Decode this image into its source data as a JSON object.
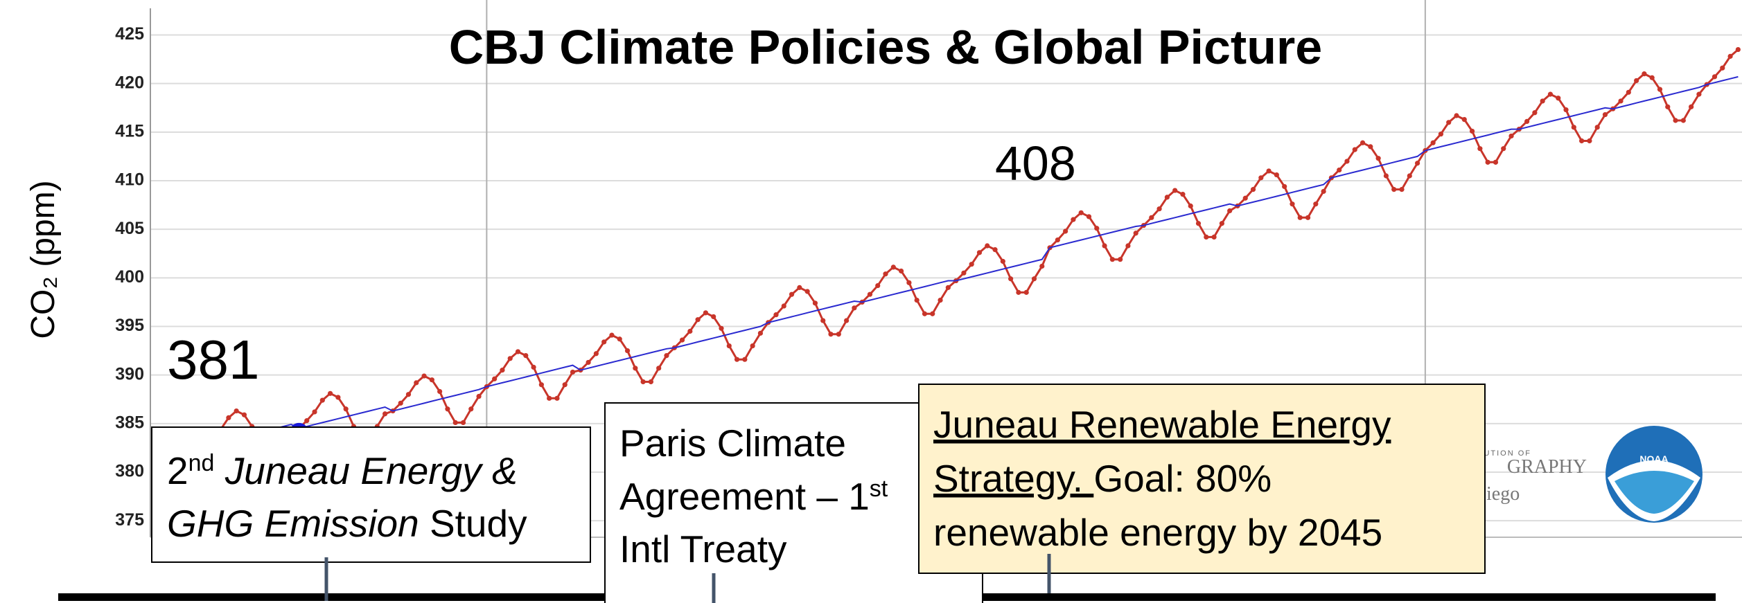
{
  "chart_data": {
    "type": "line",
    "title": "CBJ Climate Policies & Global Picture",
    "y_label": "CO₂ (ppm)",
    "ylim": [
      373.3,
      428.6
    ],
    "yticks": [
      375,
      380,
      385,
      390,
      395,
      400,
      405,
      410,
      415,
      420,
      425
    ],
    "xlim": [
      -1,
      202.5
    ],
    "xticks": [
      42,
      162
    ],
    "grid": true,
    "annotations": [
      {
        "text": "381"
      },
      {
        "text": "408"
      }
    ],
    "series": [
      {
        "color": "#c8352a",
        "markers": true,
        "values": [
          382.8,
          381.0,
          379.6,
          379.6,
          381.0,
          382.3,
          382.7,
          383.5,
          384.4,
          385.6,
          386.3,
          385.9,
          384.7,
          382.9,
          381.5,
          381.5,
          382.9,
          384.2,
          384.5,
          385.3,
          386.2,
          387.4,
          388.1,
          387.7,
          386.5,
          384.7,
          383.3,
          383.3,
          384.7,
          386.0,
          386.3,
          387.1,
          388.0,
          389.2,
          389.9,
          389.5,
          388.3,
          386.5,
          385.1,
          385.1,
          386.5,
          387.8,
          388.8,
          389.6,
          390.5,
          391.7,
          392.4,
          392.0,
          390.8,
          389.0,
          387.6,
          387.6,
          389.0,
          390.3,
          390.5,
          391.3,
          392.2,
          393.4,
          394.1,
          393.7,
          392.5,
          390.7,
          389.3,
          389.3,
          390.7,
          392.0,
          392.8,
          393.6,
          394.5,
          395.7,
          396.4,
          396.0,
          394.8,
          393.0,
          391.6,
          391.6,
          393.0,
          394.3,
          395.4,
          396.2,
          397.1,
          398.3,
          399.0,
          398.6,
          397.4,
          395.6,
          394.2,
          394.2,
          395.6,
          396.9,
          397.5,
          398.3,
          399.2,
          400.4,
          401.1,
          400.7,
          399.5,
          397.7,
          396.3,
          396.3,
          397.7,
          399.0,
          399.7,
          400.5,
          401.4,
          402.6,
          403.3,
          402.9,
          401.7,
          399.9,
          398.5,
          398.5,
          399.9,
          401.2,
          403.1,
          403.9,
          404.8,
          406.0,
          406.7,
          406.3,
          405.1,
          403.3,
          401.9,
          401.9,
          403.3,
          404.6,
          405.4,
          406.2,
          407.1,
          408.3,
          409.0,
          408.6,
          407.4,
          405.6,
          404.2,
          404.2,
          405.6,
          406.9,
          407.4,
          408.2,
          409.1,
          410.3,
          411.0,
          410.6,
          409.4,
          407.6,
          406.2,
          406.2,
          407.6,
          408.9,
          410.3,
          411.1,
          412.0,
          413.2,
          413.9,
          413.5,
          412.3,
          410.5,
          409.1,
          409.1,
          410.5,
          411.8,
          413.1,
          413.9,
          414.8,
          416.0,
          416.7,
          416.3,
          415.1,
          413.3,
          411.9,
          411.9,
          413.3,
          414.6,
          415.3,
          416.1,
          417.0,
          418.2,
          418.9,
          418.5,
          417.3,
          415.5,
          414.1,
          414.1,
          415.5,
          416.8,
          417.4,
          418.2,
          419.1,
          420.3,
          421.0,
          420.6,
          419.4,
          417.6,
          416.2,
          416.2,
          417.6,
          418.9,
          419.9,
          420.7,
          421.6,
          422.8,
          423.5
        ]
      },
      {
        "color": "#2a2ad0",
        "values": [
          382.0,
          382.2,
          382.4,
          382.6,
          382.8,
          383.0,
          382.7,
          382.9,
          383.1,
          383.3,
          383.5,
          383.7,
          383.9,
          384.1,
          384.3,
          384.5,
          384.7,
          384.9,
          384.5,
          384.7,
          384.9,
          385.1,
          385.3,
          385.5,
          385.7,
          385.9,
          386.1,
          386.3,
          386.5,
          386.7,
          386.3,
          386.5,
          386.7,
          386.9,
          387.1,
          387.3,
          387.5,
          387.7,
          387.9,
          388.1,
          388.3,
          388.5,
          388.8,
          389.0,
          389.2,
          389.4,
          389.6,
          389.8,
          390.0,
          390.2,
          390.4,
          390.6,
          390.8,
          391.0,
          390.5,
          390.7,
          390.9,
          391.1,
          391.3,
          391.5,
          391.7,
          391.9,
          392.1,
          392.3,
          392.5,
          392.7,
          392.8,
          393.0,
          393.2,
          393.4,
          393.6,
          393.8,
          394.0,
          394.2,
          394.4,
          394.6,
          394.8,
          395.0,
          395.4,
          395.6,
          395.8,
          396.0,
          396.2,
          396.4,
          396.6,
          396.8,
          397.0,
          397.2,
          397.4,
          397.6,
          397.5,
          397.7,
          397.9,
          398.1,
          398.3,
          398.5,
          398.7,
          398.9,
          399.1,
          399.3,
          399.5,
          399.7,
          399.7,
          399.9,
          400.1,
          400.3,
          400.5,
          400.7,
          400.9,
          401.1,
          401.3,
          401.5,
          401.7,
          401.9,
          403.1,
          403.3,
          403.5,
          403.7,
          403.9,
          404.1,
          404.3,
          404.5,
          404.7,
          404.9,
          405.1,
          405.3,
          405.4,
          405.6,
          405.8,
          406.0,
          406.2,
          406.4,
          406.6,
          406.8,
          407.0,
          407.2,
          407.4,
          407.6,
          407.4,
          407.6,
          407.8,
          408.0,
          408.2,
          408.4,
          408.6,
          408.8,
          409.0,
          409.2,
          409.4,
          409.6,
          410.3,
          410.5,
          410.7,
          410.9,
          411.1,
          411.3,
          411.5,
          411.7,
          411.9,
          412.1,
          412.3,
          412.5,
          413.1,
          413.3,
          413.5,
          413.7,
          413.9,
          414.1,
          414.3,
          414.5,
          414.7,
          414.9,
          415.1,
          415.3,
          415.3,
          415.5,
          415.7,
          415.9,
          416.1,
          416.3,
          416.5,
          416.7,
          416.9,
          417.1,
          417.3,
          417.5,
          417.4,
          417.6,
          417.8,
          418.0,
          418.2,
          418.4,
          418.6,
          418.8,
          419.0,
          419.2,
          419.4,
          419.6,
          419.9,
          420.1,
          420.3,
          420.5,
          420.7
        ]
      }
    ]
  },
  "logos": {
    "scripps": [
      "INSTITUTION OF",
      "GRAPHY",
      "iego"
    ],
    "noaa": "NOAA"
  },
  "timeline": {
    "events": [
      {
        "lines": [
          [
            {
              "text": "2"
            },
            {
              "text": "nd",
              "sup": true
            },
            {
              "text": " Juneau Energy &",
              "italic": true
            }
          ],
          [
            {
              "text": "GHG Emission",
              "italic": true
            },
            {
              "text": " Study"
            }
          ]
        ]
      },
      {
        "lines": [
          [
            {
              "text": "Paris Climate"
            }
          ],
          [
            {
              "text": "Agreement – 1"
            },
            {
              "text": "st",
              "sup": true
            }
          ],
          [
            {
              "text": "Intl Treaty"
            }
          ]
        ]
      },
      {
        "highlight": true,
        "lines": [
          [
            {
              "text": "Juneau Renewable Energy",
              "underline": true
            }
          ],
          [
            {
              "text": "Strategy. ",
              "underline": true
            },
            {
              "text": "Goal: 80%"
            }
          ],
          [
            {
              "text": "renewable energy by 2045"
            }
          ]
        ]
      }
    ]
  }
}
